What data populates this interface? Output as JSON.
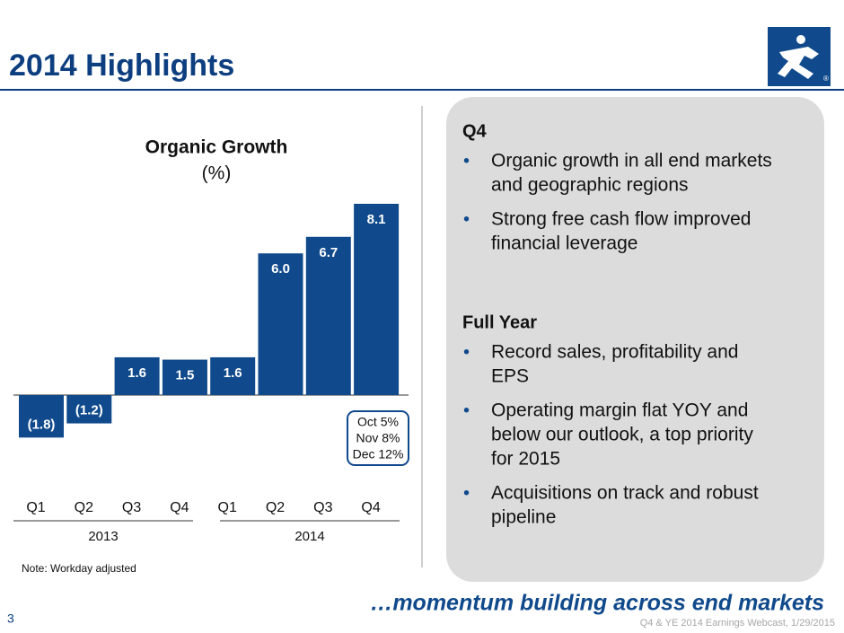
{
  "chart_data": {
    "type": "bar",
    "title": "Organic Growth",
    "subtitle": "(%)",
    "categories": [
      "Q1",
      "Q2",
      "Q3",
      "Q4",
      "Q1",
      "Q2",
      "Q3",
      "Q4"
    ],
    "groups": [
      "2013",
      "2014"
    ],
    "values": [
      -1.8,
      -1.2,
      1.6,
      1.5,
      1.6,
      6.0,
      6.7,
      8.1
    ],
    "value_labels": [
      "(1.8)",
      "(1.2)",
      "1.6",
      "1.5",
      "1.6",
      "6.0",
      "6.7",
      "8.1"
    ],
    "color": "#104a8c",
    "annotation": [
      "Oct 5%",
      "Nov 8%",
      "Dec 12%"
    ],
    "note": "Note:  Workday adjusted"
  },
  "slide": {
    "title": "2014 Highlights",
    "page_number": "3",
    "tagline": "…momentum building across end markets",
    "footer": "Q4 & YE 2014 Earnings Webcast, 1/29/2015",
    "logo_mark": "®"
  },
  "panel": {
    "sections": [
      {
        "heading": "Q4",
        "bullets": [
          [
            "Organic growth in all end markets",
            "and geographic regions"
          ],
          [
            "Strong free cash flow improved",
            "financial leverage"
          ]
        ]
      },
      {
        "heading": "Full Year",
        "bullets": [
          [
            "Record sales, profitability and",
            "EPS"
          ],
          [
            "Operating margin flat YOY and",
            "below our outlook, a top priority",
            "for 2015"
          ],
          [
            "Acquisitions on track and robust",
            "pipeline"
          ]
        ]
      }
    ],
    "bullet": "•"
  }
}
